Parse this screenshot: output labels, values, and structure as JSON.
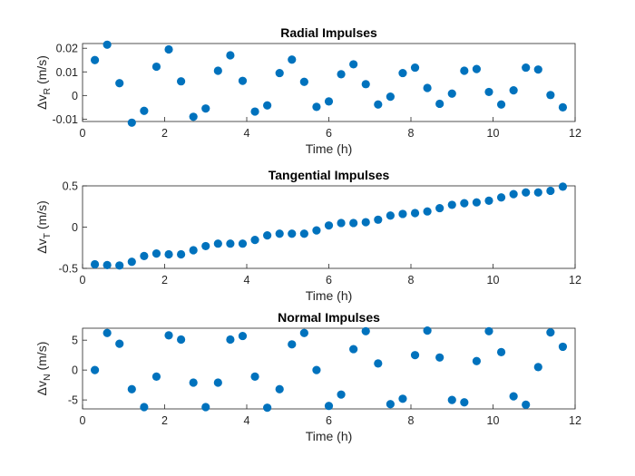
{
  "colors": {
    "marker": "#0072bd"
  },
  "chart_data": [
    {
      "type": "scatter",
      "title": "Radial Impulses",
      "xlabel": "Time (h)",
      "ylabel": {
        "base": "Δv",
        "sub": "R",
        "unit": " (m/s)"
      },
      "xlim": [
        0,
        12
      ],
      "ylim": [
        -0.011,
        0.022
      ],
      "xticks": [
        0,
        2,
        4,
        6,
        8,
        10,
        12
      ],
      "yticks": [
        -0.01,
        0,
        0.01,
        0.02
      ],
      "ytick_labels": [
        "-0.01",
        "0",
        "0.01",
        "0.02"
      ],
      "grid": true,
      "x": [
        0.3,
        0.6,
        0.9,
        1.2,
        1.5,
        1.8,
        2.1,
        2.4,
        2.7,
        3.0,
        3.3,
        3.6,
        3.9,
        4.2,
        4.5,
        4.8,
        5.1,
        5.4,
        5.7,
        6.0,
        6.3,
        6.6,
        6.9,
        7.2,
        7.5,
        7.8,
        8.1,
        8.4,
        8.7,
        9.0,
        9.3,
        9.6,
        9.9,
        10.2,
        10.5,
        10.8,
        11.1,
        11.4,
        11.7
      ],
      "y": [
        0.015,
        0.0215,
        0.0052,
        -0.0115,
        -0.0065,
        0.0122,
        0.0195,
        0.006,
        -0.009,
        -0.0055,
        0.0105,
        0.017,
        0.0062,
        -0.0068,
        -0.0042,
        0.0095,
        0.0152,
        0.0058,
        -0.0048,
        -0.0025,
        0.009,
        0.0132,
        0.0048,
        -0.0038,
        -0.0005,
        0.0095,
        0.0118,
        0.0032,
        -0.0035,
        0.0008,
        0.0105,
        0.0112,
        0.0015,
        -0.0038,
        0.0022,
        0.0118,
        0.011,
        0.0002,
        -0.005
      ]
    },
    {
      "type": "scatter",
      "title": "Tangential Impulses",
      "xlabel": "Time (h)",
      "ylabel": {
        "base": "Δv",
        "sub": "T",
        "unit": " (m/s)"
      },
      "xlim": [
        0,
        12
      ],
      "ylim": [
        -0.5,
        0.5
      ],
      "xticks": [
        0,
        2,
        4,
        6,
        8,
        10,
        12
      ],
      "yticks": [
        -0.5,
        0,
        0.5
      ],
      "ytick_labels": [
        "-0.5",
        "0",
        "0.5"
      ],
      "grid": true,
      "x": [
        0.3,
        0.6,
        0.9,
        1.2,
        1.5,
        1.8,
        2.1,
        2.4,
        2.7,
        3.0,
        3.3,
        3.6,
        3.9,
        4.2,
        4.5,
        4.8,
        5.1,
        5.4,
        5.7,
        6.0,
        6.3,
        6.6,
        6.9,
        7.2,
        7.5,
        7.8,
        8.1,
        8.4,
        8.7,
        9.0,
        9.3,
        9.6,
        9.9,
        10.2,
        10.5,
        10.8,
        11.1,
        11.4,
        11.7
      ],
      "y": [
        -0.45,
        -0.46,
        -0.465,
        -0.42,
        -0.35,
        -0.32,
        -0.33,
        -0.33,
        -0.28,
        -0.23,
        -0.2,
        -0.2,
        -0.2,
        -0.155,
        -0.1,
        -0.08,
        -0.08,
        -0.08,
        -0.04,
        0.02,
        0.05,
        0.05,
        0.06,
        0.09,
        0.14,
        0.16,
        0.17,
        0.19,
        0.23,
        0.27,
        0.29,
        0.3,
        0.32,
        0.36,
        0.4,
        0.42,
        0.42,
        0.44,
        0.49
      ]
    },
    {
      "type": "scatter",
      "title": "Normal Impulses",
      "xlabel": "Time (h)",
      "ylabel": {
        "base": "Δv",
        "sub": "N",
        "unit": " (m/s)"
      },
      "xlim": [
        0,
        12
      ],
      "ylim": [
        -6.5,
        7
      ],
      "xticks": [
        0,
        2,
        4,
        6,
        8,
        10,
        12
      ],
      "yticks": [
        -5,
        0,
        5
      ],
      "ytick_labels": [
        "-5",
        "0",
        "5"
      ],
      "grid": true,
      "x": [
        0.3,
        0.6,
        0.9,
        1.2,
        1.5,
        1.8,
        2.1,
        2.4,
        2.7,
        3.0,
        3.3,
        3.6,
        3.9,
        4.2,
        4.5,
        4.8,
        5.1,
        5.4,
        5.7,
        6.0,
        6.3,
        6.6,
        6.9,
        7.2,
        7.5,
        7.8,
        8.1,
        8.4,
        8.7,
        9.0,
        9.3,
        9.6,
        9.9,
        10.2,
        10.5,
        10.8,
        11.1,
        11.4,
        11.7
      ],
      "y": [
        0,
        6.2,
        4.4,
        -3.2,
        -6.2,
        -1.1,
        5.8,
        5.1,
        -2.1,
        -6.2,
        -2.1,
        5.1,
        5.7,
        -1.1,
        -6.3,
        -3.2,
        4.3,
        6.2,
        0,
        -6.0,
        -4.1,
        3.5,
        6.5,
        1.1,
        -5.7,
        -4.8,
        2.5,
        6.6,
        2.1,
        -5.0,
        -5.4,
        1.5,
        6.5,
        3.0,
        -4.4,
        -5.8,
        0.5,
        6.3,
        3.9
      ]
    }
  ]
}
